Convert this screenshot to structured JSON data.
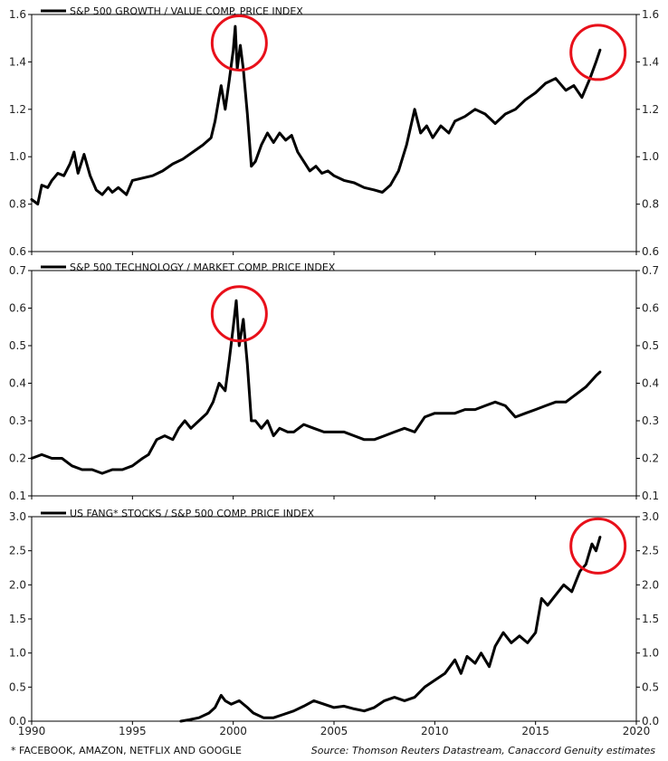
{
  "footnote": "* FACEBOOK, AMAZON, NETFLIX AND GOOGLE",
  "source": "Source: Thomson Reuters Datastream, Canaccord Genuity estimates",
  "colors": {
    "line": "#000000",
    "highlight": "#e8101a"
  },
  "chart_data": [
    {
      "type": "line",
      "title": "S&P 500 GROWTH / VALUE COMP. PRICE INDEX",
      "ylim": [
        0.6,
        1.6
      ],
      "yticks": [
        "0.6",
        "0.8",
        "1.0",
        "1.2",
        "1.4",
        "1.6"
      ],
      "xlim": [
        1990,
        2020
      ],
      "legend": "top-left",
      "grid": false,
      "series": [
        {
          "name": "S&P 500 GROWTH / VALUE COMP. PRICE INDEX",
          "x": [
            1990.0,
            1990.3,
            1990.5,
            1990.8,
            1991.0,
            1991.3,
            1991.6,
            1991.9,
            1992.1,
            1992.3,
            1992.6,
            1992.9,
            1993.2,
            1993.5,
            1993.8,
            1994.0,
            1994.3,
            1994.7,
            1995.0,
            1995.5,
            1996.0,
            1996.5,
            1997.0,
            1997.5,
            1998.0,
            1998.5,
            1998.9,
            1999.1,
            1999.4,
            1999.6,
            1999.8,
            2000.0,
            2000.1,
            2000.2,
            2000.35,
            2000.5,
            2000.7,
            2000.9,
            2001.1,
            2001.4,
            2001.7,
            2002.0,
            2002.3,
            2002.6,
            2002.9,
            2003.2,
            2003.5,
            2003.8,
            2004.1,
            2004.4,
            2004.7,
            2005.0,
            2005.5,
            2006.0,
            2006.5,
            2007.0,
            2007.4,
            2007.8,
            2008.2,
            2008.6,
            2009.0,
            2009.3,
            2009.6,
            2009.9,
            2010.3,
            2010.7,
            2011.0,
            2011.5,
            2012.0,
            2012.5,
            2013.0,
            2013.5,
            2014.0,
            2014.5,
            2015.0,
            2015.5,
            2016.0,
            2016.5,
            2016.9,
            2017.3,
            2017.7,
            2018.0,
            2018.2
          ],
          "values": [
            0.82,
            0.8,
            0.88,
            0.87,
            0.9,
            0.93,
            0.92,
            0.97,
            1.02,
            0.93,
            1.01,
            0.92,
            0.86,
            0.84,
            0.87,
            0.85,
            0.87,
            0.84,
            0.9,
            0.91,
            0.92,
            0.94,
            0.97,
            0.99,
            1.02,
            1.05,
            1.08,
            1.15,
            1.3,
            1.2,
            1.32,
            1.45,
            1.55,
            1.37,
            1.47,
            1.37,
            1.18,
            0.96,
            0.98,
            1.05,
            1.1,
            1.06,
            1.1,
            1.07,
            1.09,
            1.02,
            0.98,
            0.94,
            0.96,
            0.93,
            0.94,
            0.92,
            0.9,
            0.89,
            0.87,
            0.86,
            0.85,
            0.88,
            0.94,
            1.05,
            1.2,
            1.1,
            1.13,
            1.08,
            1.13,
            1.1,
            1.15,
            1.17,
            1.2,
            1.18,
            1.14,
            1.18,
            1.2,
            1.24,
            1.27,
            1.31,
            1.33,
            1.28,
            1.3,
            1.25,
            1.33,
            1.4,
            1.45
          ]
        }
      ]
    },
    {
      "type": "line",
      "title": "S&P 500 TECHNOLOGY / MARKET COMP. PRICE INDEX",
      "ylim": [
        0.1,
        0.7
      ],
      "yticks": [
        "0.1",
        "0.2",
        "0.3",
        "0.4",
        "0.5",
        "0.6",
        "0.7"
      ],
      "xlim": [
        1990,
        2020
      ],
      "legend": "top-left",
      "grid": false,
      "series": [
        {
          "name": "S&P 500 TECHNOLOGY / MARKET COMP. PRICE INDEX",
          "x": [
            1990.0,
            1990.5,
            1991.0,
            1991.5,
            1992.0,
            1992.5,
            1993.0,
            1993.5,
            1994.0,
            1994.5,
            1995.0,
            1995.5,
            1995.8,
            1996.2,
            1996.6,
            1997.0,
            1997.3,
            1997.6,
            1997.9,
            1998.3,
            1998.7,
            1999.0,
            1999.3,
            1999.6,
            1999.8,
            2000.0,
            2000.15,
            2000.3,
            2000.5,
            2000.7,
            2000.9,
            2001.1,
            2001.4,
            2001.7,
            2002.0,
            2002.3,
            2002.7,
            2003.0,
            2003.5,
            2004.0,
            2004.5,
            2005.0,
            2005.5,
            2006.0,
            2006.5,
            2007.0,
            2007.5,
            2008.0,
            2008.5,
            2009.0,
            2009.5,
            2010.0,
            2010.5,
            2011.0,
            2011.5,
            2012.0,
            2012.5,
            2013.0,
            2013.5,
            2014.0,
            2014.5,
            2015.0,
            2015.5,
            2016.0,
            2016.5,
            2017.0,
            2017.5,
            2018.0,
            2018.2
          ],
          "values": [
            0.2,
            0.21,
            0.2,
            0.2,
            0.18,
            0.17,
            0.17,
            0.16,
            0.17,
            0.17,
            0.18,
            0.2,
            0.21,
            0.25,
            0.26,
            0.25,
            0.28,
            0.3,
            0.28,
            0.3,
            0.32,
            0.35,
            0.4,
            0.38,
            0.46,
            0.55,
            0.62,
            0.5,
            0.57,
            0.45,
            0.3,
            0.3,
            0.28,
            0.3,
            0.26,
            0.28,
            0.27,
            0.27,
            0.29,
            0.28,
            0.27,
            0.27,
            0.27,
            0.26,
            0.25,
            0.25,
            0.26,
            0.27,
            0.28,
            0.27,
            0.31,
            0.32,
            0.32,
            0.32,
            0.33,
            0.33,
            0.34,
            0.35,
            0.34,
            0.31,
            0.32,
            0.33,
            0.34,
            0.35,
            0.35,
            0.37,
            0.39,
            0.42,
            0.43
          ]
        }
      ]
    },
    {
      "type": "line",
      "title": "US FANG* STOCKS / S&P 500 COMP. PRICE INDEX",
      "ylim": [
        0.0,
        3.0
      ],
      "yticks": [
        "0.0",
        "0.5",
        "1.0",
        "1.5",
        "2.0",
        "2.5",
        "3.0"
      ],
      "xlim": [
        1990,
        2020
      ],
      "xticks": [
        "1990",
        "1995",
        "2000",
        "2005",
        "2010",
        "2015",
        "2020"
      ],
      "legend": "top-left",
      "grid": false,
      "series": [
        {
          "name": "US FANG* STOCKS / S&P 500 COMP. PRICE INDEX",
          "x": [
            1997.4,
            1997.8,
            1998.3,
            1998.8,
            1999.1,
            1999.4,
            1999.6,
            1999.9,
            2000.3,
            2000.7,
            2001.0,
            2001.5,
            2002.0,
            2002.5,
            2003.0,
            2003.5,
            2004.0,
            2004.5,
            2005.0,
            2005.5,
            2006.0,
            2006.5,
            2007.0,
            2007.5,
            2008.0,
            2008.5,
            2009.0,
            2009.5,
            2010.0,
            2010.5,
            2011.0,
            2011.3,
            2011.6,
            2012.0,
            2012.3,
            2012.7,
            2013.0,
            2013.4,
            2013.8,
            2014.2,
            2014.6,
            2015.0,
            2015.3,
            2015.6,
            2016.0,
            2016.4,
            2016.8,
            2017.2,
            2017.5,
            2017.8,
            2018.0,
            2018.2
          ],
          "values": [
            0.0,
            0.02,
            0.05,
            0.12,
            0.2,
            0.38,
            0.3,
            0.25,
            0.3,
            0.2,
            0.12,
            0.05,
            0.05,
            0.1,
            0.15,
            0.22,
            0.3,
            0.25,
            0.2,
            0.22,
            0.18,
            0.15,
            0.2,
            0.3,
            0.35,
            0.3,
            0.35,
            0.5,
            0.6,
            0.7,
            0.9,
            0.7,
            0.95,
            0.85,
            1.0,
            0.8,
            1.1,
            1.3,
            1.15,
            1.25,
            1.15,
            1.3,
            1.8,
            1.7,
            1.85,
            2.0,
            1.9,
            2.2,
            2.3,
            2.6,
            2.5,
            2.7
          ]
        }
      ]
    }
  ]
}
